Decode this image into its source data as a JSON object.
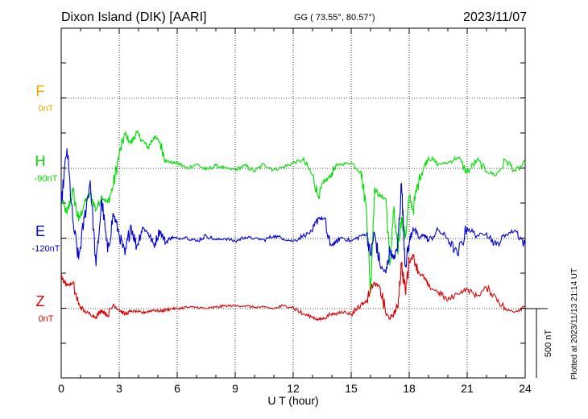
{
  "header": {
    "station": "Dixon Island (DIK)  [AARI]",
    "coords": "GG ( 73.55°,  80.57°)",
    "date": "2023/11/07"
  },
  "footer": {
    "plotted": "Plotted at 2023/11/13 21:14 UT",
    "scale": "500 nT"
  },
  "chart_data": {
    "type": "line",
    "xlabel": "U T (hour)",
    "xlim": [
      0,
      24
    ],
    "xticks": [
      "0",
      "3",
      "6",
      "9",
      "12",
      "15",
      "18",
      "21",
      "24"
    ],
    "grid": true,
    "scale_bar_nT": 500,
    "channels": [
      {
        "letter": "F",
        "offset": "0nT",
        "color": "#f0a800",
        "has_data": false
      },
      {
        "letter": "H",
        "offset": "-90nT",
        "color": "#00dd00",
        "has_data": true
      },
      {
        "letter": "E",
        "offset": "-120nT",
        "color": "#0000dd",
        "has_data": true
      },
      {
        "letter": "Z",
        "offset": "0nT",
        "color": "#dd0000",
        "has_data": true
      }
    ],
    "series": [
      {
        "name": "H",
        "x": [
          0,
          0.3,
          0.6,
          0.9,
          1.2,
          1.5,
          1.8,
          2.1,
          2.4,
          2.7,
          3.0,
          3.3,
          3.6,
          3.9,
          4.2,
          4.5,
          4.8,
          5.1,
          5.4,
          5.7,
          6.0,
          6.5,
          7.0,
          7.5,
          8.0,
          8.5,
          9.0,
          9.5,
          10.0,
          10.5,
          11.0,
          11.5,
          12.0,
          12.5,
          13.0,
          13.3,
          13.6,
          13.9,
          14.2,
          14.5,
          15.0,
          15.5,
          15.8,
          16.0,
          16.2,
          16.5,
          16.8,
          17.0,
          17.2,
          17.4,
          17.6,
          17.8,
          18.0,
          18.2,
          18.5,
          18.8,
          19.0,
          19.5,
          20.0,
          20.5,
          21.0,
          21.5,
          22.0,
          22.5,
          23.0,
          23.5,
          24.0
        ],
        "y": [
          -220,
          -330,
          -160,
          -380,
          -250,
          -180,
          -300,
          -200,
          -250,
          -120,
          100,
          250,
          180,
          260,
          200,
          150,
          230,
          190,
          60,
          40,
          40,
          0,
          30,
          -10,
          20,
          0,
          -10,
          20,
          -20,
          30,
          -10,
          10,
          40,
          60,
          -50,
          -200,
          -100,
          -60,
          20,
          30,
          40,
          -20,
          -300,
          -900,
          -150,
          -200,
          -220,
          -700,
          -300,
          -600,
          -350,
          -500,
          -200,
          -300,
          -80,
          20,
          80,
          30,
          40,
          80,
          -30,
          60,
          -20,
          -50,
          60,
          -20,
          40
        ]
      },
      {
        "name": "E",
        "x": [
          0,
          0.3,
          0.6,
          0.9,
          1.2,
          1.5,
          1.8,
          2.1,
          2.4,
          2.7,
          3.0,
          3.3,
          3.6,
          3.9,
          4.2,
          4.5,
          4.8,
          5.1,
          5.4,
          5.7,
          6.0,
          6.5,
          7.0,
          7.5,
          8.0,
          8.5,
          9.0,
          9.5,
          10.0,
          10.5,
          11.0,
          11.5,
          12.0,
          12.5,
          13.0,
          13.3,
          13.6,
          13.9,
          14.2,
          14.5,
          15.0,
          15.5,
          15.8,
          16.0,
          16.2,
          16.5,
          16.8,
          17.0,
          17.2,
          17.4,
          17.6,
          17.8,
          18.0,
          18.2,
          18.5,
          18.8,
          19.0,
          19.5,
          20.0,
          20.5,
          21.0,
          21.5,
          22.0,
          22.5,
          23.0,
          23.5,
          24.0
        ],
        "y": [
          250,
          650,
          120,
          -150,
          150,
          420,
          -200,
          280,
          -100,
          180,
          30,
          -120,
          100,
          -60,
          80,
          40,
          -50,
          60,
          -30,
          10,
          0,
          10,
          -20,
          20,
          -10,
          0,
          -20,
          10,
          0,
          -10,
          20,
          0,
          -20,
          20,
          50,
          150,
          140,
          -50,
          -30,
          10,
          -20,
          20,
          30,
          -120,
          40,
          -200,
          -250,
          -80,
          -150,
          -60,
          400,
          -200,
          -30,
          80,
          0,
          30,
          -20,
          60,
          0,
          -120,
          80,
          20,
          40,
          -50,
          30,
          60,
          -50
        ]
      },
      {
        "name": "Z",
        "x": [
          0,
          0.3,
          0.6,
          0.9,
          1.2,
          1.5,
          1.8,
          2.1,
          2.4,
          2.7,
          3.0,
          3.3,
          3.6,
          3.9,
          4.2,
          4.5,
          4.8,
          5.1,
          5.4,
          5.7,
          6.0,
          6.5,
          7.0,
          7.5,
          8.0,
          8.5,
          9.0,
          9.5,
          10.0,
          10.5,
          11.0,
          11.5,
          12.0,
          12.5,
          13.0,
          13.3,
          13.6,
          13.9,
          14.2,
          14.5,
          15.0,
          15.5,
          15.8,
          16.0,
          16.2,
          16.5,
          16.8,
          17.0,
          17.2,
          17.4,
          17.6,
          17.8,
          18.0,
          18.2,
          18.5,
          18.8,
          19.0,
          19.5,
          20.0,
          20.5,
          21.0,
          21.5,
          22.0,
          22.5,
          23.0,
          23.5,
          24.0
        ],
        "y": [
          230,
          170,
          180,
          30,
          -20,
          -40,
          -60,
          -10,
          -50,
          30,
          -10,
          -40,
          -20,
          -20,
          -30,
          -20,
          -10,
          -20,
          -10,
          0,
          0,
          10,
          10,
          0,
          10,
          20,
          20,
          20,
          10,
          10,
          0,
          20,
          10,
          -40,
          -60,
          -80,
          -70,
          -40,
          -40,
          -20,
          -40,
          30,
          50,
          150,
          180,
          150,
          -40,
          -70,
          -40,
          20,
          320,
          120,
          340,
          380,
          260,
          220,
          160,
          120,
          60,
          110,
          140,
          90,
          150,
          80,
          -10,
          -20,
          20
        ]
      }
    ]
  }
}
